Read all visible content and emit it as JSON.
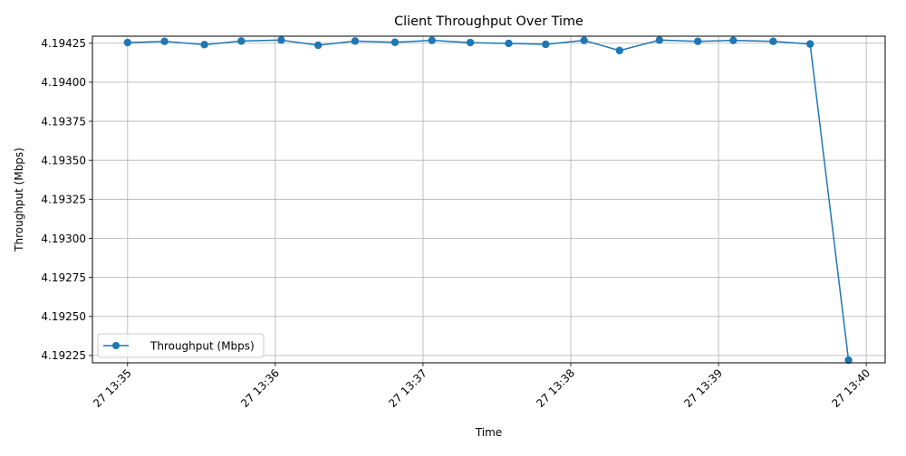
{
  "chart_data": {
    "type": "line",
    "title": "Client Throughput Over Time",
    "xlabel": "Time",
    "ylabel": "Throughput (Mbps)",
    "grid": true,
    "legend_position": "lower-left",
    "colors": {
      "series": "#1f77b4",
      "grid": "#b0b0b0"
    },
    "x_unit": "minutes past 13:35 on day 27",
    "xlim": [
      -0.238,
      5.128
    ],
    "ylim": [
      4.192203,
      4.194295
    ],
    "x_ticks": [
      {
        "value": 0,
        "label": "27 13:35"
      },
      {
        "value": 1,
        "label": "27 13:36"
      },
      {
        "value": 2,
        "label": "27 13:37"
      },
      {
        "value": 3,
        "label": "27 13:38"
      },
      {
        "value": 4,
        "label": "27 13:39"
      },
      {
        "value": 5,
        "label": "27 13:40"
      }
    ],
    "y_ticks": [
      {
        "value": 4.19225,
        "label": "4.19225"
      },
      {
        "value": 4.1925,
        "label": "4.19250"
      },
      {
        "value": 4.19275,
        "label": "4.19275"
      },
      {
        "value": 4.193,
        "label": "4.19300"
      },
      {
        "value": 4.19325,
        "label": "4.19325"
      },
      {
        "value": 4.1935,
        "label": "4.19350"
      },
      {
        "value": 4.19375,
        "label": "4.19375"
      },
      {
        "value": 4.194,
        "label": "4.19400"
      },
      {
        "value": 4.19425,
        "label": "4.19425"
      }
    ],
    "series": [
      {
        "name": "Throughput (Mbps)",
        "marker": "circle",
        "points": [
          {
            "x": 0.0,
            "y": 4.194254
          },
          {
            "x": 0.25,
            "y": 4.194262
          },
          {
            "x": 0.52,
            "y": 4.194241
          },
          {
            "x": 0.77,
            "y": 4.194264
          },
          {
            "x": 1.04,
            "y": 4.19427
          },
          {
            "x": 1.29,
            "y": 4.194237
          },
          {
            "x": 1.54,
            "y": 4.194264
          },
          {
            "x": 1.81,
            "y": 4.194256
          },
          {
            "x": 2.06,
            "y": 4.194268
          },
          {
            "x": 2.32,
            "y": 4.194254
          },
          {
            "x": 2.58,
            "y": 4.194249
          },
          {
            "x": 2.83,
            "y": 4.194243
          },
          {
            "x": 3.09,
            "y": 4.194268
          },
          {
            "x": 3.33,
            "y": 4.194203
          },
          {
            "x": 3.6,
            "y": 4.19427
          },
          {
            "x": 3.86,
            "y": 4.194262
          },
          {
            "x": 4.1,
            "y": 4.194268
          },
          {
            "x": 4.37,
            "y": 4.194262
          },
          {
            "x": 4.62,
            "y": 4.194245
          },
          {
            "x": 4.88,
            "y": 4.19222
          }
        ]
      }
    ]
  }
}
